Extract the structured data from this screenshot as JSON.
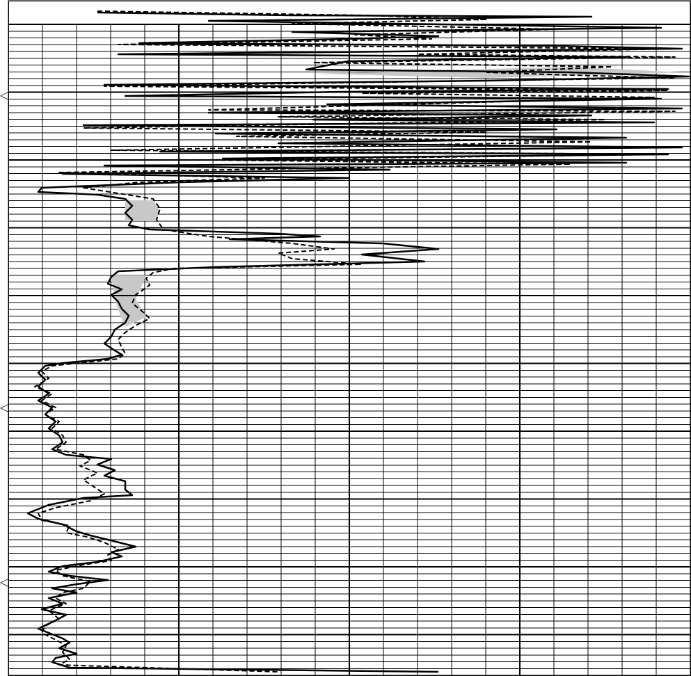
{
  "chart_data": {
    "type": "line",
    "title": "",
    "xlabel": "",
    "ylabel": "",
    "grid": true,
    "x_scale": "log",
    "x_decades": 2,
    "shading": "between-series",
    "colors": {
      "line": "#000000",
      "grid": "#000000",
      "fill": "#c8c8c8",
      "background": "#ffffff"
    },
    "series": [
      {
        "style": "solid",
        "points": [
          [
            140,
            18
          ],
          [
            420,
            22
          ],
          [
            850,
            24
          ],
          [
            300,
            30
          ],
          [
            700,
            36
          ],
          [
            950,
            40
          ],
          [
            420,
            46
          ],
          [
            630,
            52
          ],
          [
            500,
            56
          ],
          [
            200,
            62
          ],
          [
            800,
            66
          ],
          [
            980,
            70
          ],
          [
            170,
            78
          ],
          [
            900,
            82
          ],
          [
            500,
            88
          ],
          [
            440,
            100
          ],
          [
            820,
            104
          ],
          [
            990,
            110
          ],
          [
            700,
            116
          ],
          [
            150,
            122
          ],
          [
            960,
            128
          ],
          [
            490,
            132
          ],
          [
            180,
            138
          ],
          [
            950,
            142
          ],
          [
            470,
            150
          ],
          [
            980,
            156
          ],
          [
            300,
            162
          ],
          [
            850,
            166
          ],
          [
            450,
            172
          ],
          [
            940,
            176
          ],
          [
            120,
            180
          ],
          [
            800,
            186
          ],
          [
            310,
            192
          ],
          [
            900,
            198
          ],
          [
            400,
            206
          ],
          [
            980,
            212
          ],
          [
            230,
            218
          ],
          [
            960,
            222
          ],
          [
            320,
            228
          ],
          [
            900,
            234
          ],
          [
            150,
            238
          ],
          [
            560,
            244
          ],
          [
            90,
            250
          ],
          [
            500,
            256
          ],
          [
            260,
            262
          ],
          [
            60,
            270
          ],
          [
            55,
            276
          ],
          [
            140,
            280
          ],
          [
            180,
            286
          ],
          [
            190,
            296
          ],
          [
            180,
            306
          ],
          [
            190,
            316
          ],
          [
            185,
            324
          ],
          [
            215,
            330
          ],
          [
            400,
            336
          ],
          [
            460,
            340
          ],
          [
            330,
            344
          ],
          [
            550,
            350
          ],
          [
            630,
            358
          ],
          [
            520,
            366
          ],
          [
            610,
            376
          ],
          [
            310,
            384
          ],
          [
            170,
            390
          ],
          [
            160,
            398
          ],
          [
            155,
            408
          ],
          [
            175,
            416
          ],
          [
            160,
            424
          ],
          [
            170,
            434
          ],
          [
            175,
            444
          ],
          [
            185,
            454
          ],
          [
            180,
            464
          ],
          [
            165,
            474
          ],
          [
            160,
            484
          ],
          [
            150,
            494
          ],
          [
            165,
            504
          ],
          [
            175,
            510
          ],
          [
            155,
            516
          ],
          [
            90,
            522
          ],
          [
            65,
            526
          ],
          [
            55,
            536
          ],
          [
            65,
            546
          ],
          [
            55,
            556
          ],
          [
            70,
            566
          ],
          [
            55,
            576
          ],
          [
            75,
            586
          ],
          [
            65,
            596
          ],
          [
            80,
            606
          ],
          [
            70,
            616
          ],
          [
            85,
            626
          ],
          [
            90,
            636
          ],
          [
            75,
            646
          ],
          [
            95,
            654
          ],
          [
            160,
            660
          ],
          [
            140,
            668
          ],
          [
            165,
            676
          ],
          [
            150,
            684
          ],
          [
            180,
            692
          ],
          [
            180,
            704
          ],
          [
            190,
            712
          ],
          [
            120,
            716
          ],
          [
            70,
            726
          ],
          [
            40,
            738
          ],
          [
            55,
            746
          ],
          [
            90,
            754
          ],
          [
            110,
            764
          ],
          [
            130,
            770
          ],
          [
            155,
            776
          ],
          [
            195,
            786
          ],
          [
            160,
            794
          ],
          [
            175,
            800
          ],
          [
            140,
            808
          ],
          [
            90,
            814
          ],
          [
            70,
            822
          ],
          [
            100,
            828
          ],
          [
            155,
            834
          ],
          [
            110,
            840
          ],
          [
            75,
            846
          ],
          [
            110,
            852
          ],
          [
            70,
            860
          ],
          [
            90,
            868
          ],
          [
            60,
            876
          ],
          [
            95,
            884
          ],
          [
            80,
            892
          ],
          [
            55,
            904
          ],
          [
            75,
            912
          ],
          [
            90,
            918
          ],
          [
            100,
            924
          ],
          [
            85,
            932
          ],
          [
            110,
            940
          ],
          [
            80,
            946
          ],
          [
            75,
            952
          ],
          [
            100,
            960
          ],
          [
            630,
            966
          ]
        ]
      },
      {
        "style": "dashed",
        "points": [
          [
            140,
            16
          ],
          [
            520,
            22
          ],
          [
            700,
            28
          ],
          [
            420,
            34
          ],
          [
            800,
            42
          ],
          [
            510,
            50
          ],
          [
            620,
            56
          ],
          [
            170,
            64
          ],
          [
            960,
            70
          ],
          [
            600,
            78
          ],
          [
            970,
            82
          ],
          [
            450,
            90
          ],
          [
            880,
            96
          ],
          [
            700,
            104
          ],
          [
            820,
            108
          ],
          [
            970,
            112
          ],
          [
            150,
            124
          ],
          [
            960,
            130
          ],
          [
            520,
            134
          ],
          [
            940,
            140
          ],
          [
            300,
            158
          ],
          [
            970,
            160
          ],
          [
            400,
            168
          ],
          [
            870,
            172
          ],
          [
            120,
            184
          ],
          [
            700,
            190
          ],
          [
            340,
            196
          ],
          [
            850,
            204
          ],
          [
            160,
            216
          ],
          [
            950,
            222
          ],
          [
            300,
            230
          ],
          [
            820,
            236
          ],
          [
            85,
            248
          ],
          [
            380,
            256
          ],
          [
            200,
            262
          ],
          [
            120,
            270
          ],
          [
            220,
            286
          ],
          [
            230,
            300
          ],
          [
            225,
            316
          ],
          [
            235,
            330
          ],
          [
            300,
            340
          ],
          [
            420,
            350
          ],
          [
            480,
            358
          ],
          [
            400,
            364
          ],
          [
            420,
            372
          ],
          [
            520,
            380
          ],
          [
            250,
            386
          ],
          [
            220,
            392
          ],
          [
            210,
            400
          ],
          [
            215,
            410
          ],
          [
            195,
            424
          ],
          [
            190,
            436
          ],
          [
            205,
            448
          ],
          [
            215,
            458
          ],
          [
            195,
            468
          ],
          [
            180,
            478
          ],
          [
            170,
            488
          ],
          [
            175,
            500
          ],
          [
            180,
            508
          ],
          [
            170,
            516
          ],
          [
            75,
            526
          ],
          [
            60,
            534
          ],
          [
            70,
            544
          ],
          [
            50,
            556
          ],
          [
            75,
            566
          ],
          [
            60,
            576
          ],
          [
            80,
            586
          ],
          [
            65,
            596
          ],
          [
            85,
            606
          ],
          [
            75,
            616
          ],
          [
            90,
            626
          ],
          [
            95,
            636
          ],
          [
            80,
            646
          ],
          [
            120,
            654
          ],
          [
            130,
            662
          ],
          [
            115,
            670
          ],
          [
            140,
            680
          ],
          [
            120,
            690
          ],
          [
            135,
            700
          ],
          [
            150,
            710
          ],
          [
            130,
            720
          ],
          [
            80,
            730
          ],
          [
            55,
            738
          ],
          [
            60,
            748
          ],
          [
            100,
            756
          ],
          [
            95,
            766
          ],
          [
            125,
            772
          ],
          [
            150,
            780
          ],
          [
            170,
            790
          ],
          [
            155,
            798
          ],
          [
            160,
            806
          ],
          [
            120,
            812
          ],
          [
            80,
            820
          ],
          [
            90,
            828
          ],
          [
            130,
            836
          ],
          [
            120,
            846
          ],
          [
            90,
            852
          ],
          [
            80,
            860
          ],
          [
            95,
            868
          ],
          [
            70,
            878
          ],
          [
            85,
            890
          ],
          [
            65,
            900
          ],
          [
            60,
            910
          ],
          [
            80,
            920
          ],
          [
            95,
            928
          ],
          [
            90,
            938
          ],
          [
            100,
            948
          ],
          [
            85,
            956
          ],
          [
            400,
            966
          ]
        ]
      }
    ],
    "fills": [
      [
        [
          180,
          288
        ],
        [
          220,
          288
        ],
        [
          230,
          304
        ],
        [
          225,
          318
        ],
        [
          180,
          318
        ]
      ],
      [
        [
          160,
          396
        ],
        [
          210,
          396
        ],
        [
          195,
          430
        ],
        [
          210,
          456
        ],
        [
          180,
          470
        ],
        [
          168,
          440
        ]
      ],
      [
        [
          450,
          106
        ],
        [
          820,
          96
        ],
        [
          980,
          104
        ],
        [
          700,
          112
        ]
      ]
    ],
    "markers": [
      {
        "row": 136,
        "glyph": "◁"
      },
      {
        "row": 585,
        "glyph": "◁"
      },
      {
        "row": 836,
        "glyph": "◁"
      }
    ]
  }
}
